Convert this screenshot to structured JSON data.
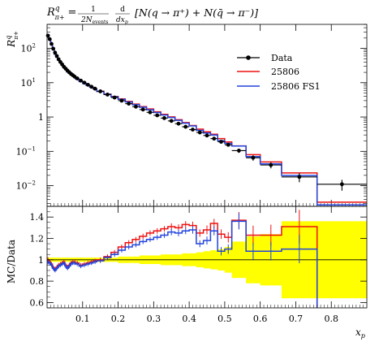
{
  "title": {
    "lhs": "R",
    "lhs_sup": "q",
    "lhs_sub": "π+",
    "eq": "=",
    "frac1_num": "1",
    "frac1_den": "2N",
    "frac1_den_sub": "events",
    "frac2_num": "d",
    "frac2_den": "dx",
    "frac2_den_sub": "p",
    "rhs": "[N(q → π⁺) + N(q̄ → π⁻)]"
  },
  "colors": {
    "data": "#000000",
    "series1": "#ee1111",
    "series2": "#2244dd",
    "band": "#ffff00"
  },
  "chart_data": [
    {
      "type": "line",
      "xscale": "linear",
      "yscale": "log",
      "xlim": [
        0,
        0.9
      ],
      "ylim": [
        0.0025,
        500
      ],
      "ylabel": "R",
      "ylabel_sup": "q",
      "ylabel_sub": "π+",
      "yticks": [
        {
          "v": 0.01,
          "t": "10",
          "e": "−2"
        },
        {
          "v": 0.1,
          "t": "10",
          "e": "−1"
        },
        {
          "v": 1,
          "t": "1",
          "e": ""
        },
        {
          "v": 10,
          "t": "10",
          "e": "1"
        },
        {
          "v": 100,
          "t": "10",
          "e": "2"
        }
      ],
      "legend": {
        "placement": "top-right",
        "entries": [
          "Data",
          "25806",
          "25806 FS1"
        ]
      },
      "bin_edges": [
        0.0,
        0.005,
        0.01,
        0.015,
        0.02,
        0.025,
        0.03,
        0.035,
        0.04,
        0.045,
        0.05,
        0.055,
        0.06,
        0.065,
        0.07,
        0.075,
        0.08,
        0.09,
        0.1,
        0.11,
        0.12,
        0.13,
        0.14,
        0.16,
        0.18,
        0.2,
        0.22,
        0.24,
        0.26,
        0.28,
        0.3,
        0.32,
        0.34,
        0.36,
        0.38,
        0.4,
        0.42,
        0.44,
        0.46,
        0.48,
        0.5,
        0.52,
        0.56,
        0.6,
        0.66,
        0.76,
        0.9
      ],
      "data": {
        "x": [
          0.0025,
          0.0075,
          0.0125,
          0.0175,
          0.0225,
          0.0275,
          0.0325,
          0.0375,
          0.0425,
          0.0475,
          0.0525,
          0.0575,
          0.0625,
          0.0675,
          0.0725,
          0.0775,
          0.085,
          0.095,
          0.105,
          0.115,
          0.125,
          0.135,
          0.15,
          0.17,
          0.19,
          0.21,
          0.23,
          0.25,
          0.27,
          0.29,
          0.31,
          0.33,
          0.35,
          0.37,
          0.39,
          0.41,
          0.43,
          0.45,
          0.47,
          0.49,
          0.51,
          0.54,
          0.58,
          0.63,
          0.71,
          0.83
        ],
        "y": [
          235,
          185,
          135,
          98,
          75,
          60,
          48,
          40,
          34,
          29,
          25.5,
          22.5,
          20,
          18,
          16.5,
          15,
          13.3,
          11.5,
          10,
          8.7,
          7.6,
          6.7,
          5.6,
          4.5,
          3.7,
          3.0,
          2.45,
          2.0,
          1.65,
          1.37,
          1.12,
          0.93,
          0.77,
          0.64,
          0.52,
          0.43,
          0.355,
          0.29,
          0.235,
          0.19,
          0.155,
          0.105,
          0.065,
          0.04,
          0.018,
          0.011
        ],
        "err_lo": [
          0.06,
          0.05,
          0.05,
          0.05,
          0.05,
          0.05,
          0.05,
          0.05,
          0.05,
          0.05,
          0.05,
          0.05,
          0.05,
          0.05,
          0.05,
          0.05,
          0.05,
          0.05,
          0.05,
          0.05,
          0.05,
          0.05,
          0.05,
          0.05,
          0.05,
          0.05,
          0.05,
          0.05,
          0.05,
          0.05,
          0.05,
          0.05,
          0.06,
          0.06,
          0.06,
          0.07,
          0.07,
          0.08,
          0.08,
          0.09,
          0.1,
          0.14,
          0.18,
          0.2,
          0.3,
          0.35
        ],
        "err_hi": [
          0.06,
          0.05,
          0.05,
          0.05,
          0.05,
          0.05,
          0.05,
          0.05,
          0.05,
          0.05,
          0.05,
          0.05,
          0.05,
          0.05,
          0.05,
          0.05,
          0.05,
          0.05,
          0.05,
          0.05,
          0.05,
          0.05,
          0.05,
          0.05,
          0.05,
          0.05,
          0.05,
          0.05,
          0.05,
          0.05,
          0.05,
          0.05,
          0.06,
          0.06,
          0.06,
          0.07,
          0.07,
          0.08,
          0.08,
          0.09,
          0.1,
          0.14,
          0.18,
          0.2,
          0.3,
          0.35
        ]
      },
      "series": [
        {
          "name": "25806",
          "ratio": [
            1.0,
            0.98,
            0.96,
            0.93,
            0.91,
            0.93,
            0.95,
            0.96,
            0.97,
            0.98,
            0.95,
            0.93,
            0.95,
            0.97,
            0.98,
            0.98,
            0.97,
            0.95,
            0.96,
            0.97,
            0.98,
            0.99,
            1.0,
            1.03,
            1.07,
            1.12,
            1.16,
            1.19,
            1.22,
            1.25,
            1.27,
            1.29,
            1.31,
            1.3,
            1.33,
            1.32,
            1.25,
            1.28,
            1.34,
            1.24,
            1.21,
            1.37,
            1.23,
            1.23,
            1.31,
            0.3
          ]
        },
        {
          "name": "25806 FS1",
          "ratio": [
            0.98,
            0.97,
            0.95,
            0.92,
            0.9,
            0.92,
            0.94,
            0.95,
            0.96,
            0.97,
            0.94,
            0.92,
            0.94,
            0.96,
            0.97,
            0.97,
            0.96,
            0.94,
            0.95,
            0.96,
            0.97,
            0.98,
            0.99,
            1.02,
            1.05,
            1.09,
            1.12,
            1.14,
            1.17,
            1.19,
            1.21,
            1.23,
            1.26,
            1.25,
            1.27,
            1.28,
            1.15,
            1.18,
            1.27,
            1.08,
            1.1,
            1.36,
            1.08,
            1.08,
            1.1,
            0.25
          ]
        }
      ]
    },
    {
      "type": "line",
      "xlim": [
        0,
        0.9
      ],
      "ylim": [
        0.55,
        1.5
      ],
      "ylabel": "MC/Data",
      "xlabel": "x",
      "xlabel_sub": "p",
      "xticks": [
        "0.1",
        "0.2",
        "0.3",
        "0.4",
        "0.5",
        "0.6",
        "0.7",
        "0.8"
      ],
      "yticks": [
        "0.6",
        "0.8",
        "1",
        "1.2",
        "1.4"
      ],
      "band_halfwidth": [
        0.02,
        0.02,
        0.02,
        0.02,
        0.02,
        0.02,
        0.02,
        0.02,
        0.02,
        0.02,
        0.02,
        0.02,
        0.02,
        0.02,
        0.02,
        0.02,
        0.02,
        0.02,
        0.02,
        0.02,
        0.02,
        0.02,
        0.02,
        0.02,
        0.02,
        0.03,
        0.03,
        0.03,
        0.04,
        0.04,
        0.04,
        0.05,
        0.05,
        0.05,
        0.06,
        0.06,
        0.07,
        0.08,
        0.09,
        0.1,
        0.12,
        0.17,
        0.22,
        0.24,
        0.36,
        0.36
      ]
    }
  ]
}
